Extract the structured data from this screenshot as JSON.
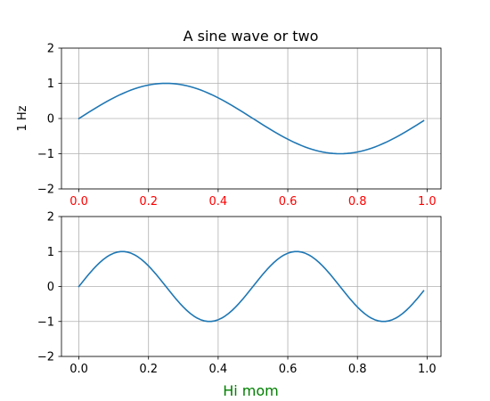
{
  "chart_data": [
    {
      "type": "line",
      "title": "A sine wave or two",
      "ylabel": "1 Hz",
      "xlabel": "",
      "grid": true,
      "xlim": [
        -0.05,
        1.04
      ],
      "ylim": [
        -2,
        2
      ],
      "xticks": [
        0.0,
        0.2,
        0.4,
        0.6,
        0.8,
        1.0
      ],
      "xtick_labels": [
        "0.0",
        "0.2",
        "0.4",
        "0.6",
        "0.8",
        "1.0"
      ],
      "yticks": [
        -2,
        -1,
        0,
        1,
        2
      ],
      "ytick_labels": [
        "−2",
        "−1",
        "0",
        "1",
        "2"
      ],
      "xtick_color": "#ff0000",
      "ytick_color": "#000000",
      "line_color": "#1f77b4",
      "series": [
        {
          "frequency_hz": 1,
          "x_start": 0.0,
          "x_end": 0.99,
          "x_step": 0.01
        }
      ]
    },
    {
      "type": "line",
      "title": "",
      "ylabel": "",
      "xlabel": "Hi mom",
      "xlabel_color": "#008000",
      "grid": true,
      "xlim": [
        -0.05,
        1.04
      ],
      "ylim": [
        -2,
        2
      ],
      "xticks": [
        0.0,
        0.2,
        0.4,
        0.6,
        0.8,
        1.0
      ],
      "xtick_labels": [
        "0.0",
        "0.2",
        "0.4",
        "0.6",
        "0.8",
        "1.0"
      ],
      "yticks": [
        -2,
        -1,
        0,
        1,
        2
      ],
      "ytick_labels": [
        "−2",
        "−1",
        "0",
        "1",
        "2"
      ],
      "xtick_color": "#000000",
      "ytick_color": "#000000",
      "line_color": "#1f77b4",
      "series": [
        {
          "frequency_hz": 2,
          "x_start": 0.0,
          "x_end": 0.99,
          "x_step": 0.01
        }
      ]
    }
  ]
}
